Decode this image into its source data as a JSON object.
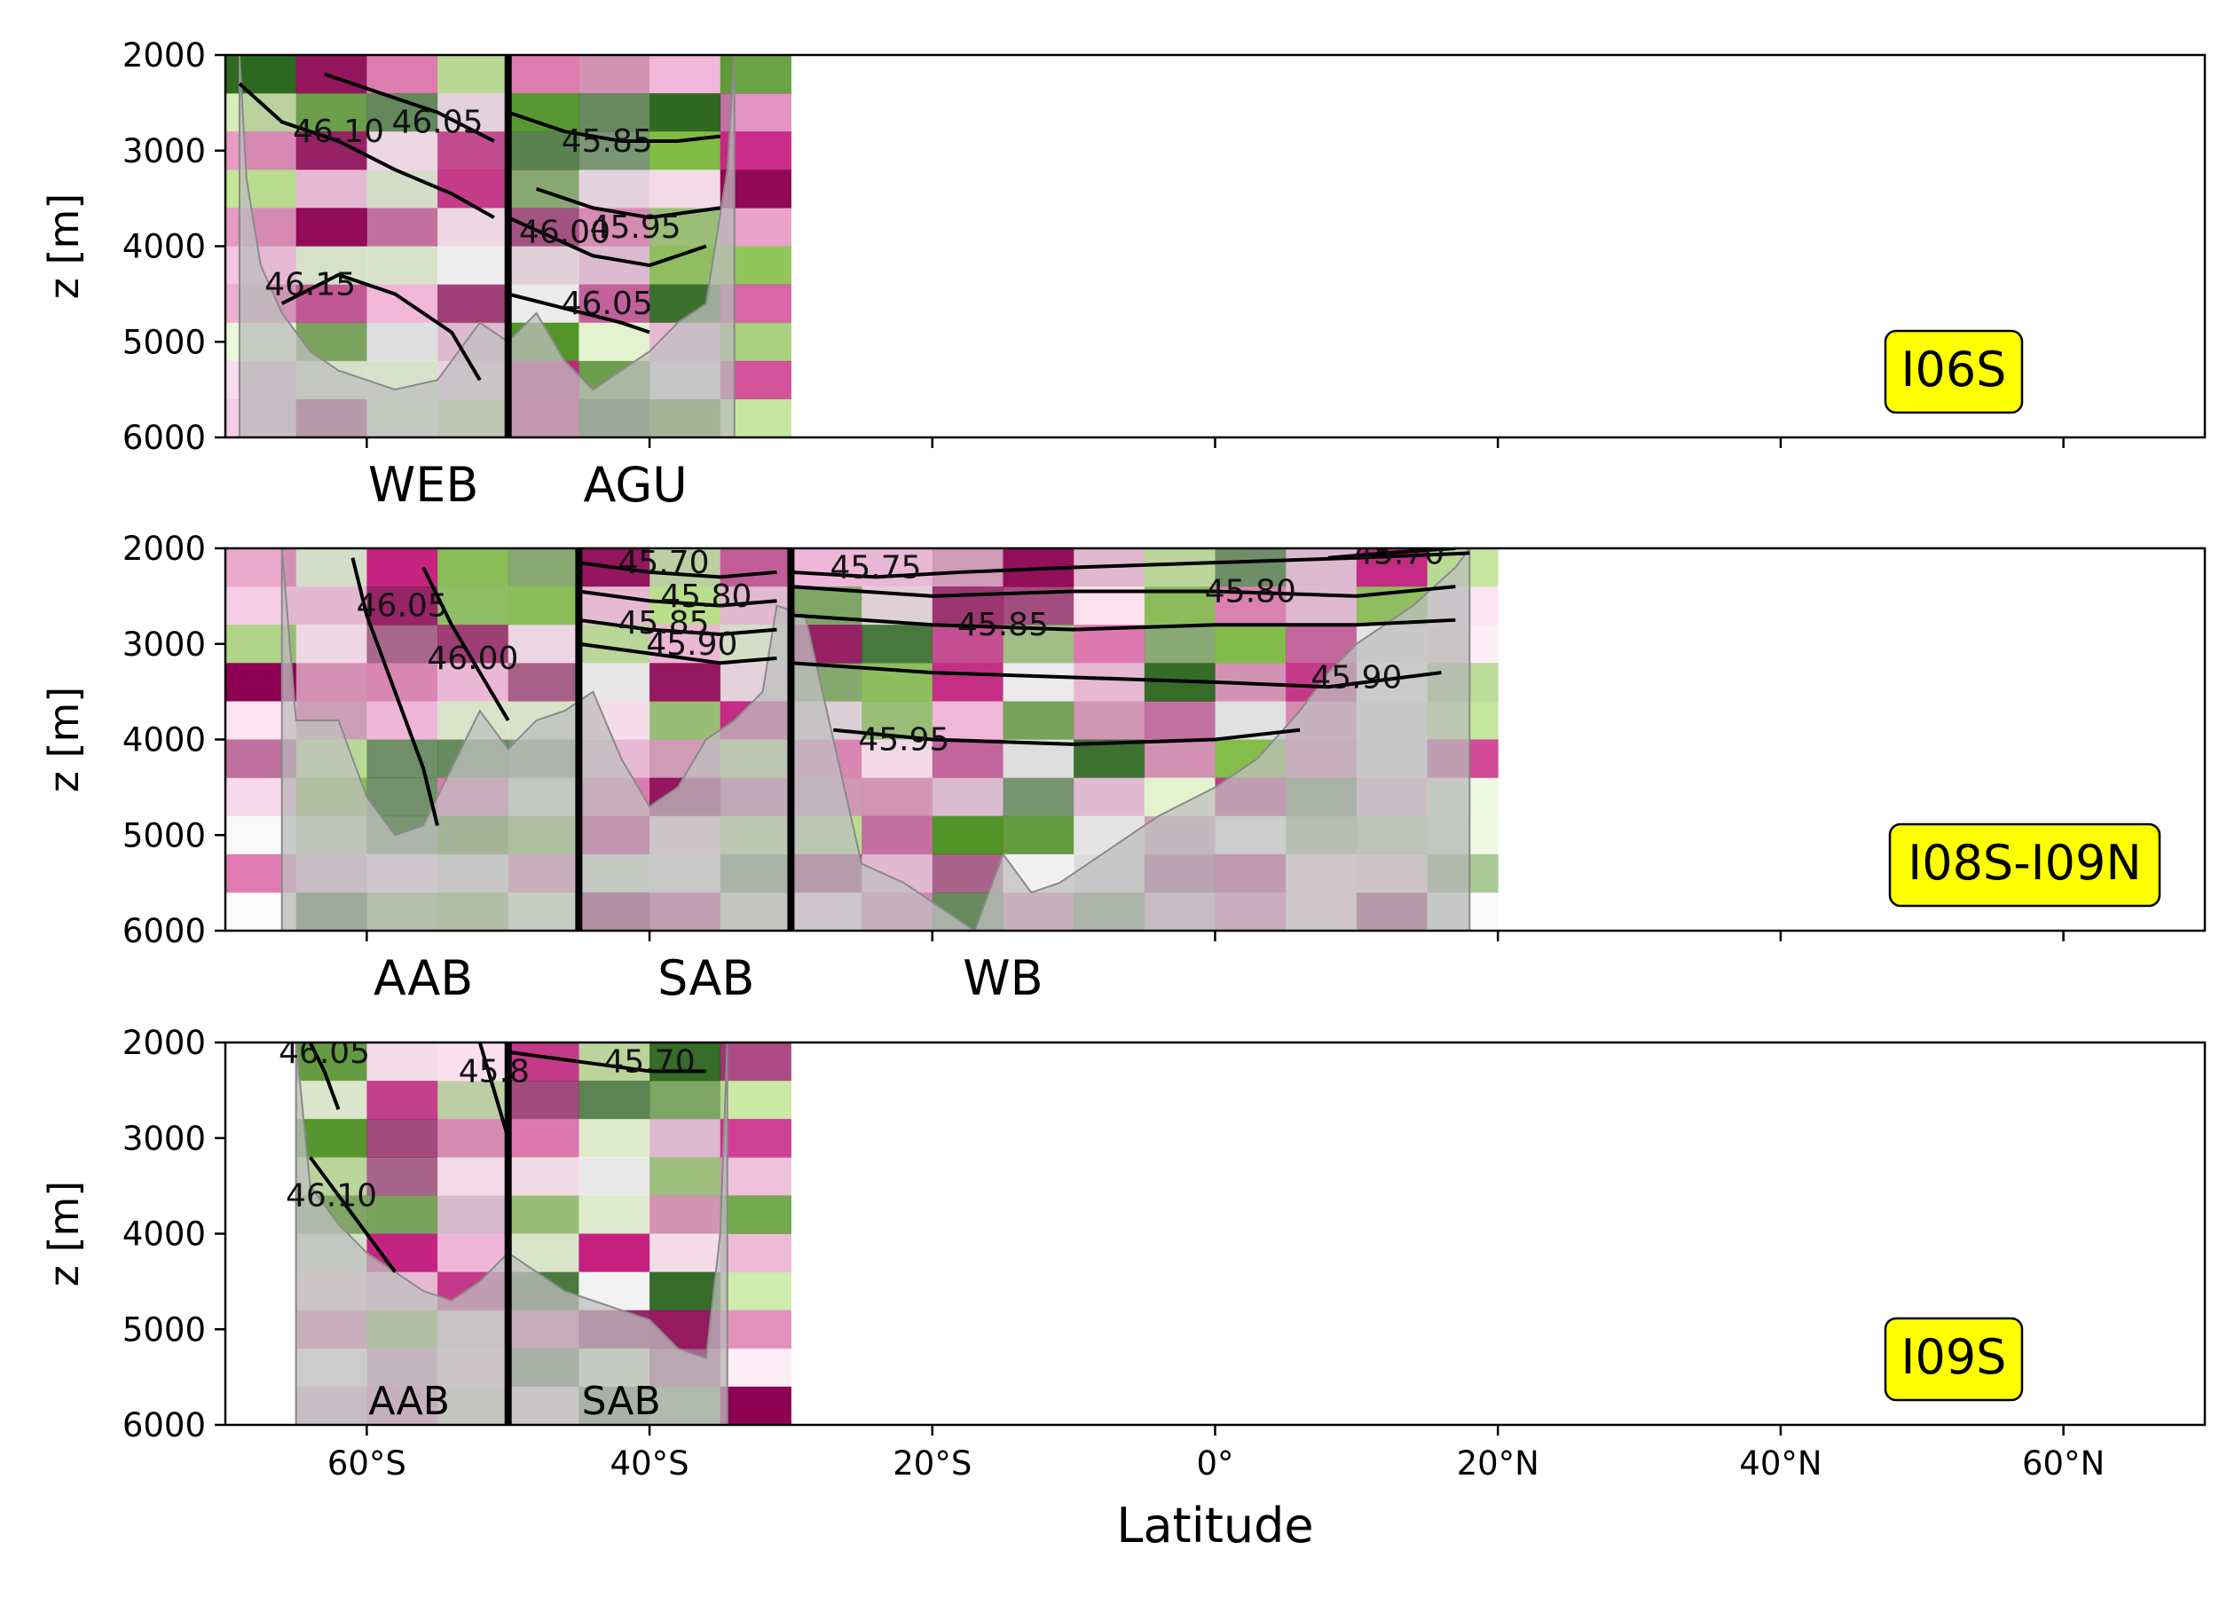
{
  "figure": {
    "xlabel": "Latitude",
    "ylabel": "z [m]",
    "x_ticks": [
      "60°S",
      "40°S",
      "20°S",
      "0°",
      "20°N",
      "40°N",
      "60°N"
    ],
    "y_ticks": [
      "2000",
      "3000",
      "4000",
      "5000",
      "6000"
    ],
    "colors": {
      "badge": "#ffff00",
      "bathymetry": "#bfbfbf",
      "frame": "#000000"
    }
  },
  "chart_data": [
    {
      "type": "heatmap",
      "section": "I06S",
      "xlim": [
        -70,
        70
      ],
      "ylim": [
        6000,
        2000
      ],
      "bathymetry": [
        [
          -69,
          2000
        ],
        [
          -68.5,
          3300
        ],
        [
          -67.5,
          4200
        ],
        [
          -66,
          4700
        ],
        [
          -64,
          5100
        ],
        [
          -62,
          5300
        ],
        [
          -58,
          5500
        ],
        [
          -55,
          5400
        ],
        [
          -52,
          4800
        ],
        [
          -50,
          5000
        ],
        [
          -48,
          4700
        ],
        [
          -46,
          5200
        ],
        [
          -44,
          5500
        ],
        [
          -42,
          5300
        ],
        [
          -40,
          5100
        ],
        [
          -38,
          4800
        ],
        [
          -36,
          4600
        ],
        [
          -34.5,
          3200
        ],
        [
          -34,
          2000
        ]
      ],
      "basins": [
        {
          "name": "WEB",
          "label_x": -56
        },
        {
          "name": "AGU",
          "label_x": -41
        }
      ],
      "fronts": [
        -50
      ],
      "contours": [
        {
          "label": "46.10",
          "label_x": -62,
          "label_depth": 2800,
          "line": [
            [
              -69,
              2300
            ],
            [
              -66,
              2700
            ],
            [
              -62,
              2900
            ],
            [
              -58,
              3200
            ],
            [
              -54,
              3450
            ],
            [
              -51,
              3700
            ]
          ]
        },
        {
          "label": "46.05",
          "label_x": -55,
          "label_depth": 2700,
          "line": [
            [
              -63,
              2200
            ],
            [
              -59,
              2400
            ],
            [
              -55,
              2600
            ],
            [
              -51,
              2900
            ]
          ]
        },
        {
          "label": "46.15",
          "label_x": -64,
          "label_depth": 4400,
          "line": [
            [
              -66,
              4600
            ],
            [
              -62,
              4300
            ],
            [
              -58,
              4500
            ],
            [
              -54,
              4900
            ],
            [
              -52,
              5400
            ]
          ]
        },
        {
          "label": "45.85",
          "label_x": -43,
          "label_depth": 2900,
          "line": [
            [
              -50,
              2600
            ],
            [
              -46,
              2800
            ],
            [
              -42,
              2900
            ],
            [
              -38,
              2900
            ],
            [
              -35,
              2850
            ]
          ]
        },
        {
          "label": "46.00",
          "label_x": -46,
          "label_depth": 3850,
          "line": [
            [
              -50,
              3700
            ],
            [
              -47,
              3900
            ],
            [
              -44,
              4100
            ],
            [
              -40,
              4200
            ],
            [
              -36,
              4000
            ]
          ]
        },
        {
          "label": "45.95",
          "label_x": -41,
          "label_depth": 3800,
          "line": [
            [
              -48,
              3400
            ],
            [
              -44,
              3600
            ],
            [
              -40,
              3700
            ],
            [
              -35,
              3600
            ]
          ]
        },
        {
          "label": "46.05",
          "label_x": -43,
          "label_depth": 4600,
          "line": [
            [
              -50,
              4500
            ],
            [
              -46,
              4650
            ],
            [
              -42,
              4800
            ],
            [
              -40,
              4900
            ]
          ]
        }
      ],
      "badge": "I06S"
    },
    {
      "type": "heatmap",
      "section": "I08S-I09N",
      "xlim": [
        -70,
        70
      ],
      "ylim": [
        6000,
        2000
      ],
      "bathymetry": [
        [
          -66,
          2000
        ],
        [
          -65,
          3800
        ],
        [
          -62,
          3800
        ],
        [
          -60,
          4600
        ],
        [
          -58,
          5000
        ],
        [
          -56,
          4900
        ],
        [
          -54,
          4300
        ],
        [
          -52,
          3700
        ],
        [
          -50,
          4100
        ],
        [
          -48,
          3800
        ],
        [
          -46,
          3700
        ],
        [
          -44,
          3500
        ],
        [
          -42,
          4200
        ],
        [
          -40,
          4700
        ],
        [
          -38,
          4500
        ],
        [
          -36,
          4000
        ],
        [
          -34,
          3800
        ],
        [
          -32,
          3500
        ],
        [
          -31,
          2600
        ],
        [
          -29,
          2700
        ],
        [
          -27,
          4000
        ],
        [
          -25,
          5300
        ],
        [
          -22,
          5500
        ],
        [
          -19,
          5800
        ],
        [
          -17,
          6000
        ],
        [
          -15,
          5200
        ],
        [
          -13,
          5600
        ],
        [
          -11,
          5500
        ],
        [
          -8,
          5200
        ],
        [
          -4,
          4800
        ],
        [
          0,
          4500
        ],
        [
          3,
          4200
        ],
        [
          6,
          3700
        ],
        [
          8,
          3300
        ],
        [
          10,
          3000
        ],
        [
          14,
          2600
        ],
        [
          17,
          2200
        ],
        [
          18,
          2000
        ]
      ],
      "basins": [
        {
          "name": "AAB",
          "label_x": -56
        },
        {
          "name": "SAB",
          "label_x": -36
        },
        {
          "name": "WB",
          "label_x": -15
        }
      ],
      "fronts": [
        -45,
        -30
      ],
      "contours": [
        {
          "label": "45.70",
          "label_x": -39,
          "label_depth": 2150,
          "line": [
            [
              -45,
              2150
            ],
            [
              -40,
              2250
            ],
            [
              -35,
              2300
            ],
            [
              -31,
              2250
            ]
          ]
        },
        {
          "label": "45.80",
          "label_x": -36,
          "label_depth": 2500,
          "line": [
            [
              -45,
              2450
            ],
            [
              -40,
              2550
            ],
            [
              -35,
              2600
            ],
            [
              -31,
              2550
            ]
          ]
        },
        {
          "label": "45.85",
          "label_x": -39,
          "label_depth": 2780,
          "line": [
            [
              -45,
              2750
            ],
            [
              -40,
              2850
            ],
            [
              -35,
              2900
            ],
            [
              -31,
              2850
            ]
          ]
        },
        {
          "label": "45.90",
          "label_x": -37,
          "label_depth": 3000,
          "line": [
            [
              -45,
              3000
            ],
            [
              -40,
              3100
            ],
            [
              -35,
              3200
            ],
            [
              -31,
              3150
            ]
          ]
        },
        {
          "label": "45.75",
          "label_x": -24,
          "label_depth": 2200,
          "line": [
            [
              -30,
              2250
            ],
            [
              -24,
              2300
            ],
            [
              -18,
              2250
            ],
            [
              -10,
              2200
            ],
            [
              0,
              2150
            ],
            [
              10,
              2100
            ],
            [
              18,
              2050
            ]
          ]
        },
        {
          "label": "45.80",
          "label_x": 2.5,
          "label_depth": 2450,
          "line": [
            [
              -30,
              2400
            ],
            [
              -20,
              2500
            ],
            [
              -10,
              2450
            ],
            [
              0,
              2450
            ],
            [
              10,
              2500
            ],
            [
              17,
              2400
            ]
          ]
        },
        {
          "label": "45.70",
          "label_x": 13,
          "label_depth": 2050,
          "line": [
            [
              8,
              2100
            ],
            [
              12,
              2050
            ],
            [
              17,
              2000
            ]
          ]
        },
        {
          "label": "45.85",
          "label_x": -15,
          "label_depth": 2800,
          "line": [
            [
              -30,
              2700
            ],
            [
              -20,
              2800
            ],
            [
              -10,
              2850
            ],
            [
              0,
              2800
            ],
            [
              10,
              2800
            ],
            [
              17,
              2750
            ]
          ]
        },
        {
          "label": "45.90",
          "label_x": 10,
          "label_depth": 3350,
          "line": [
            [
              -30,
              3200
            ],
            [
              -20,
              3300
            ],
            [
              -10,
              3350
            ],
            [
              0,
              3400
            ],
            [
              8,
              3450
            ],
            [
              16,
              3300
            ]
          ]
        },
        {
          "label": "45.95",
          "label_x": -22,
          "label_depth": 4000,
          "line": [
            [
              -27,
              3900
            ],
            [
              -20,
              4000
            ],
            [
              -10,
              4050
            ],
            [
              0,
              4000
            ],
            [
              6,
              3900
            ]
          ]
        },
        {
          "label": "46.05",
          "label_x": -57.5,
          "label_depth": 2600,
          "line": [
            [
              -61,
              2100
            ],
            [
              -60,
              2700
            ],
            [
              -58,
              3500
            ],
            [
              -56,
              4300
            ],
            [
              -55,
              4900
            ]
          ]
        },
        {
          "label": "46.00",
          "label_x": -52.5,
          "label_depth": 3150,
          "line": [
            [
              -56,
              2200
            ],
            [
              -54,
              2800
            ],
            [
              -52,
              3300
            ],
            [
              -50,
              3800
            ]
          ]
        }
      ],
      "badge": "I08S-I09N"
    },
    {
      "type": "heatmap",
      "section": "I09S",
      "xlim": [
        -70,
        70
      ],
      "ylim": [
        6000,
        2000
      ],
      "bathymetry": [
        [
          -65,
          2000
        ],
        [
          -64,
          3500
        ],
        [
          -62,
          3900
        ],
        [
          -60,
          4200
        ],
        [
          -58,
          4400
        ],
        [
          -56,
          4600
        ],
        [
          -54,
          4700
        ],
        [
          -52,
          4500
        ],
        [
          -50,
          4200
        ],
        [
          -48,
          4400
        ],
        [
          -46,
          4600
        ],
        [
          -44,
          4700
        ],
        [
          -42,
          4800
        ],
        [
          -40,
          4900
        ],
        [
          -38,
          5200
        ],
        [
          -36,
          5300
        ],
        [
          -35,
          4000
        ],
        [
          -34.5,
          2000
        ]
      ],
      "basins": [
        {
          "name": "AAB",
          "label_x": -57
        },
        {
          "name": "SAB",
          "label_x": -42
        }
      ],
      "fronts": [
        -50
      ],
      "contours": [
        {
          "label": "45.70",
          "label_x": -40,
          "label_depth": 2200,
          "line": [
            [
              -50,
              2100
            ],
            [
              -45,
              2200
            ],
            [
              -40,
              2300
            ],
            [
              -36,
              2300
            ]
          ]
        },
        {
          "label": "46.10",
          "label_x": -62.5,
          "label_depth": 3600,
          "line": [
            [
              -64,
              3200
            ],
            [
              -62,
              3600
            ],
            [
              -60,
              4000
            ],
            [
              -58,
              4400
            ]
          ]
        },
        {
          "label": "46.05",
          "label_x": -63,
          "label_depth": 2100,
          "line": [
            [
              -64,
              2000
            ],
            [
              -63,
              2300
            ],
            [
              -62,
              2700
            ]
          ]
        },
        {
          "label": "45.8",
          "label_x": -51,
          "label_depth": 2300,
          "line": [
            [
              -52,
              2000
            ],
            [
              -51,
              2500
            ],
            [
              -50,
              3000
            ]
          ]
        }
      ],
      "badge": "I09S"
    }
  ]
}
